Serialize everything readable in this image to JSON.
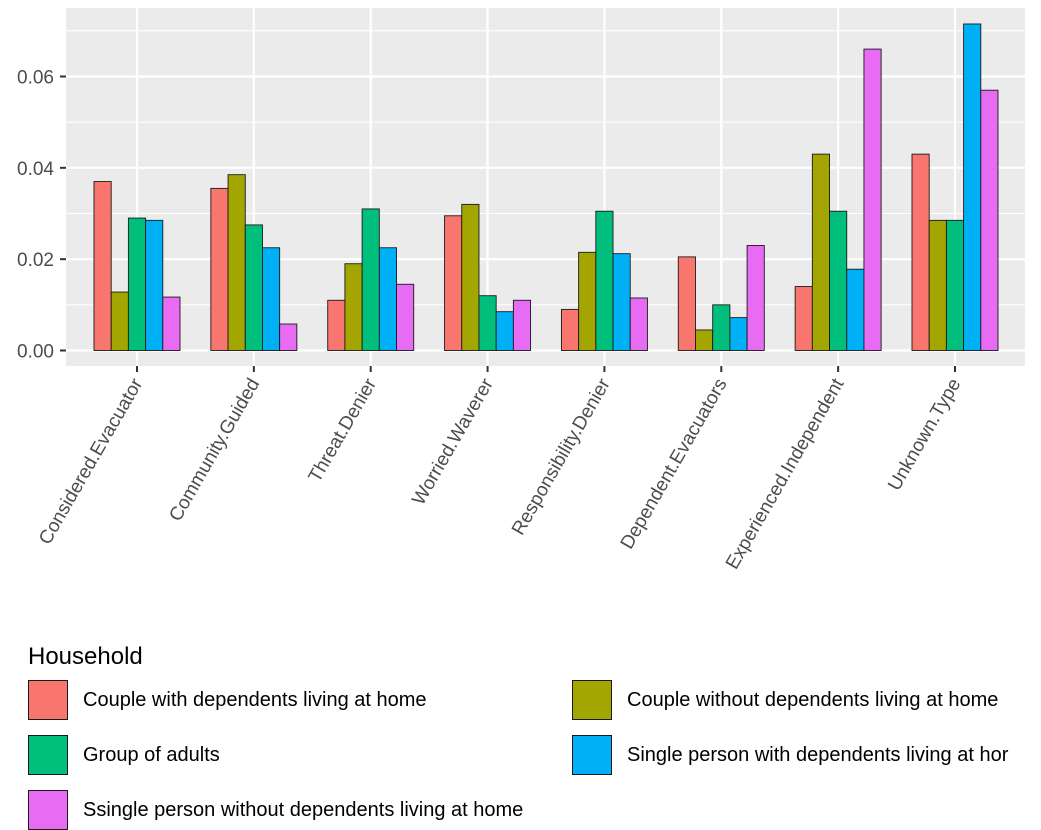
{
  "chart_data": {
    "type": "bar",
    "title": "",
    "xlabel": "",
    "ylabel": "",
    "ylim": [
      0,
      0.075
    ],
    "yticks": [
      "0.00",
      "0.02",
      "0.04",
      "0.06"
    ],
    "ytick_values": [
      0,
      0.02,
      0.04,
      0.06
    ],
    "grid": true,
    "legend_position": "bottom",
    "legend_title": "Household",
    "categories": [
      "Considered.Evacuator",
      "Community.Guided",
      "Threat.Denier",
      "Worried.Waverer",
      "Responsibility.Denier",
      "Dependent.Evacuators",
      "Experienced.Independent",
      "Unknown.Type"
    ],
    "series": [
      {
        "name": "Couple with dependents living at home",
        "color": "#F8766D",
        "values": [
          0.037,
          0.0355,
          0.011,
          0.0295,
          0.009,
          0.0205,
          0.014,
          0.043
        ]
      },
      {
        "name": "Couple without dependents living at home",
        "color": "#A3A500",
        "values": [
          0.0128,
          0.0385,
          0.019,
          0.032,
          0.0215,
          0.0045,
          0.043,
          0.0285
        ]
      },
      {
        "name": "Group of adults",
        "color": "#00BF7D",
        "values": [
          0.029,
          0.0275,
          0.031,
          0.012,
          0.0305,
          0.01,
          0.0305,
          0.0285
        ]
      },
      {
        "name": "Single person with dependents living at hor",
        "color": "#00B0F6",
        "values": [
          0.0285,
          0.0225,
          0.0225,
          0.0085,
          0.0212,
          0.0072,
          0.0178,
          0.0715
        ]
      },
      {
        "name": "Ssingle person without dependents living at home",
        "color": "#E76BF3",
        "values": [
          0.0117,
          0.0058,
          0.0145,
          0.011,
          0.0115,
          0.023,
          0.066,
          0.057
        ]
      }
    ]
  }
}
